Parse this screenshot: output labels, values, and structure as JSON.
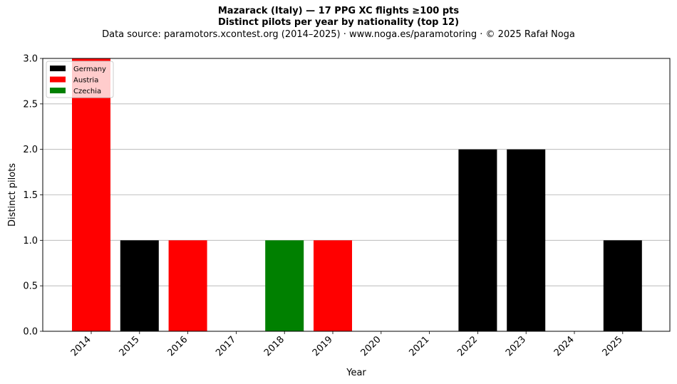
{
  "chart_data": {
    "type": "bar",
    "stacked": true,
    "title": "Mazarack (Italy)  —  17 PPG XC flights ≥100 pts",
    "subtitle": "Distinct pilots per year by nationality (top 12)",
    "source": "Data source: paramotors.xcontest.org (2014–2025)  ·  www.noga.es/paramotoring  ·  © 2025 Rafał Noga",
    "xlabel": "Year",
    "ylabel": "Distinct pilots",
    "ylim": [
      0,
      3
    ],
    "yticks": [
      "0.0",
      "0.5",
      "1.0",
      "1.5",
      "2.0",
      "2.5",
      "3.0"
    ],
    "grid": "y",
    "legend_position": "top-left",
    "categories": [
      "2014",
      "2015",
      "2016",
      "2017",
      "2018",
      "2019",
      "2020",
      "2021",
      "2022",
      "2023",
      "2024",
      "2025"
    ],
    "series": [
      {
        "name": "Germany",
        "color": "#000000",
        "values": [
          0,
          1,
          0,
          0,
          0,
          0,
          0,
          0,
          2,
          2,
          0,
          1
        ]
      },
      {
        "name": "Austria",
        "color": "#ff0000",
        "values": [
          3,
          0,
          1,
          0,
          0,
          1,
          0,
          0,
          0,
          0,
          0,
          0
        ]
      },
      {
        "name": "Czechia",
        "color": "#008000",
        "values": [
          0,
          0,
          0,
          0,
          1,
          0,
          0,
          0,
          0,
          0,
          0,
          0
        ]
      }
    ]
  }
}
